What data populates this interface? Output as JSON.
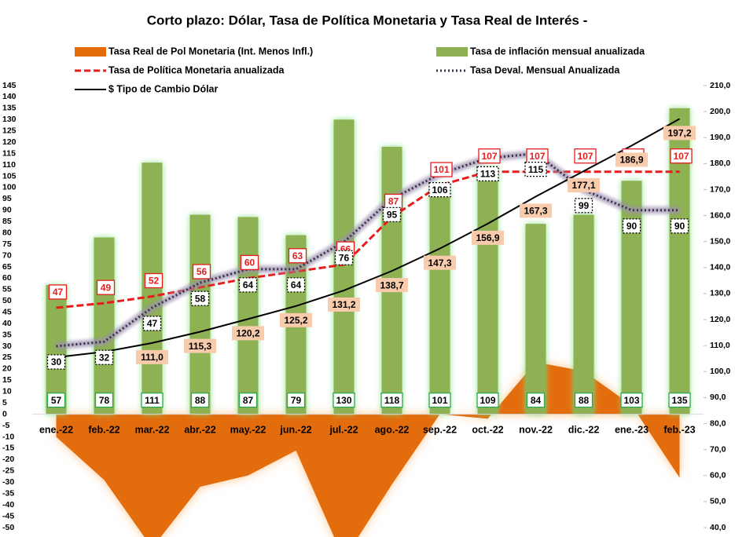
{
  "chart_data": {
    "type": "combo",
    "title": "Corto plazo: Dólar, Tasa de Política Monetaria y Tasa Real de Interés -",
    "categories": [
      "ene.-22",
      "feb.-22",
      "mar.-22",
      "abr.-22",
      "may.-22",
      "jun.-22",
      "jul.-22",
      "ago.-22",
      "sep.-22",
      "oct.-22",
      "nov.-22",
      "dic.-22",
      "ene.-23",
      "feb.-23"
    ],
    "series": [
      {
        "name": "Tasa Real de Pol Monetaria (Int. Menos Infl.)",
        "kind": "area",
        "color": "#e36c09",
        "values": [
          -10,
          -29,
          -59,
          -32,
          -27,
          -16,
          -64,
          -31,
          0,
          -2,
          23,
          19,
          4,
          -28
        ]
      },
      {
        "name": "Tasa de inflación mensual anualizada",
        "kind": "bar",
        "color": "#8db153",
        "values": [
          57,
          78,
          111,
          88,
          87,
          79,
          130,
          118,
          101,
          109,
          84,
          88,
          103,
          135
        ]
      },
      {
        "name": "Tasa de Política Monetaria anualizada",
        "kind": "line",
        "style": "dashed",
        "color": "#e81c1c",
        "values": [
          47,
          49,
          52,
          56,
          60,
          63,
          66,
          87,
          101,
          107,
          107,
          107,
          107,
          107
        ]
      },
      {
        "name": "Tasa Deval. Mensual Anualizada",
        "kind": "line",
        "style": "dotted",
        "color": "#3a3046",
        "values": [
          30,
          32,
          47,
          58,
          64,
          64,
          76,
          95,
          106,
          113,
          115,
          99,
          90,
          90
        ]
      },
      {
        "name": "$ Tipo de Cambio Dólar",
        "kind": "line",
        "style": "solid",
        "color": "#000000",
        "axis": "y2",
        "values": [
          105.5,
          107.6,
          111.0,
          115.3,
          120.2,
          125.2,
          131.2,
          138.7,
          147.3,
          156.9,
          167.3,
          177.1,
          186.9,
          197.2
        ],
        "value_labels": [
          null,
          null,
          "111,0",
          "115,3",
          "120,2",
          "125,2",
          "131,2",
          "138,7",
          "147,3",
          "156,9",
          "167,3",
          "177,1",
          "186,9",
          "197,2"
        ]
      }
    ],
    "ylim": [
      -50,
      145
    ],
    "yticks": [
      -50,
      -45,
      -40,
      -35,
      -30,
      -25,
      -20,
      -15,
      -10,
      -5,
      0,
      5,
      10,
      15,
      20,
      25,
      30,
      35,
      40,
      45,
      50,
      55,
      60,
      65,
      70,
      75,
      80,
      85,
      90,
      95,
      100,
      105,
      110,
      115,
      120,
      125,
      130,
      135,
      140,
      145
    ],
    "y2lim": [
      40,
      210
    ],
    "y2ticks": [
      {
        "value": 40,
        "label": "40,0"
      },
      {
        "value": 50,
        "label": "50,0"
      },
      {
        "value": 60,
        "label": "60,0"
      },
      {
        "value": 70,
        "label": "70,0"
      },
      {
        "value": 80,
        "label": "80,0"
      },
      {
        "value": 90,
        "label": "90,0"
      },
      {
        "value": 100,
        "label": "100,0"
      },
      {
        "value": 110,
        "label": "110,0"
      },
      {
        "value": 120,
        "label": "120,0"
      },
      {
        "value": 130,
        "label": "130,0"
      },
      {
        "value": 140,
        "label": "140,0"
      },
      {
        "value": 150,
        "label": "150,0"
      },
      {
        "value": 160,
        "label": "160,0"
      },
      {
        "value": 170,
        "label": "170,0"
      },
      {
        "value": 180,
        "label": "180,0"
      },
      {
        "value": 190,
        "label": "190,0"
      },
      {
        "value": 200,
        "label": "200,0"
      },
      {
        "value": 210,
        "label": "210,0"
      }
    ]
  }
}
